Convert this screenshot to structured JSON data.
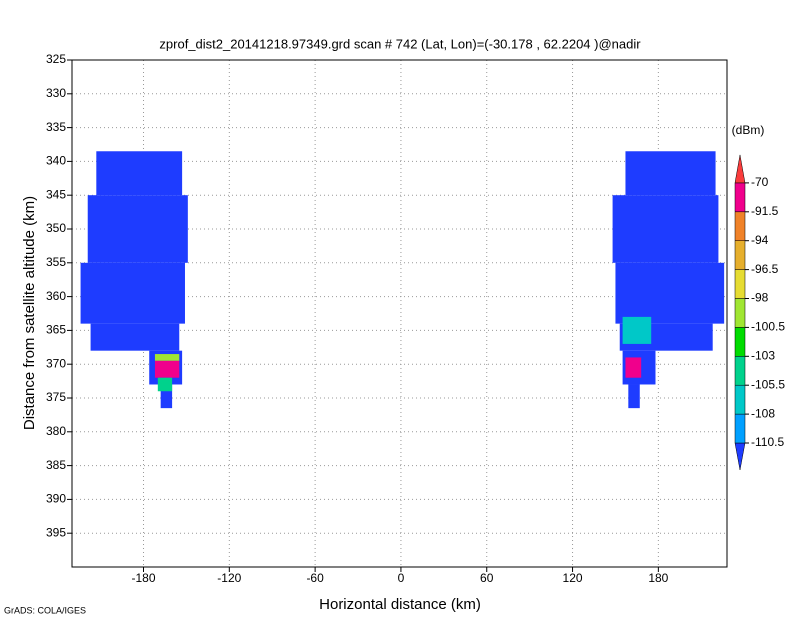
{
  "chart_data": {
    "type": "heatmap",
    "title": "zprof_dist2_20141218.97349.grd  scan # 742  (Lat, Lon)=(-30.178 , 62.2204 )@nadir",
    "xlabel": "Horizontal distance (km)",
    "ylabel": "Distance from satellite altitude (km)",
    "xlim": [
      -230,
      228
    ],
    "ylim": [
      325,
      400
    ],
    "y_inverted": true,
    "xticks": [
      -180,
      -120,
      -60,
      0,
      60,
      120,
      180
    ],
    "yticks": [
      325,
      330,
      335,
      340,
      345,
      350,
      355,
      360,
      365,
      370,
      375,
      380,
      385,
      390,
      395
    ],
    "grid": true,
    "colorbar_label": "(dBm)",
    "levels": [
      -110.5,
      -108,
      -105.5,
      -103,
      -100.5,
      -98,
      -96.5,
      -94,
      -91.5,
      -70
    ],
    "colors": [
      "#1e3cff",
      "#00a0ff",
      "#00c8c8",
      "#00d28c",
      "#00dc00",
      "#a0e632",
      "#e6dc32",
      "#e6af2d",
      "#f08228",
      "#f0008c",
      "#fa3c3c"
    ],
    "cells": [
      {
        "x0": -213,
        "x1": -153,
        "y0": 338.5,
        "y1": 345,
        "value": -115
      },
      {
        "x0": -219,
        "x1": -149,
        "y0": 345,
        "y1": 355,
        "value": -115
      },
      {
        "x0": -224,
        "x1": -151,
        "y0": 355,
        "y1": 364,
        "value": -115
      },
      {
        "x0": -217,
        "x1": -155,
        "y0": 364,
        "y1": 368,
        "value": -115
      },
      {
        "x0": -176,
        "x1": -153,
        "y0": 368,
        "y1": 373,
        "value": -115
      },
      {
        "x0": -168,
        "x1": -160,
        "y0": 373,
        "y1": 376.5,
        "value": -115
      },
      {
        "x0": -172,
        "x1": -155,
        "y0": 368.5,
        "y1": 369.5,
        "value": -99
      },
      {
        "x0": -172,
        "x1": -155,
        "y0": 369.5,
        "y1": 372,
        "value": -80
      },
      {
        "x0": -170,
        "x1": -160,
        "y0": 372,
        "y1": 374,
        "value": -104
      },
      {
        "x0": 157,
        "x1": 220,
        "y0": 338.5,
        "y1": 345,
        "value": -115
      },
      {
        "x0": 148,
        "x1": 222,
        "y0": 345,
        "y1": 355,
        "value": -115
      },
      {
        "x0": 150,
        "x1": 226,
        "y0": 355,
        "y1": 364,
        "value": -115
      },
      {
        "x0": 153,
        "x1": 218,
        "y0": 364,
        "y1": 368,
        "value": -115
      },
      {
        "x0": 155,
        "x1": 178,
        "y0": 368,
        "y1": 373,
        "value": -115
      },
      {
        "x0": 159,
        "x1": 167,
        "y0": 373,
        "y1": 376.5,
        "value": -115
      },
      {
        "x0": 155,
        "x1": 175,
        "y0": 363,
        "y1": 367,
        "value": -107
      },
      {
        "x0": 157,
        "x1": 168,
        "y0": 369,
        "y1": 372,
        "value": -80
      }
    ]
  },
  "footer": "GrADS: COLA/IGES"
}
